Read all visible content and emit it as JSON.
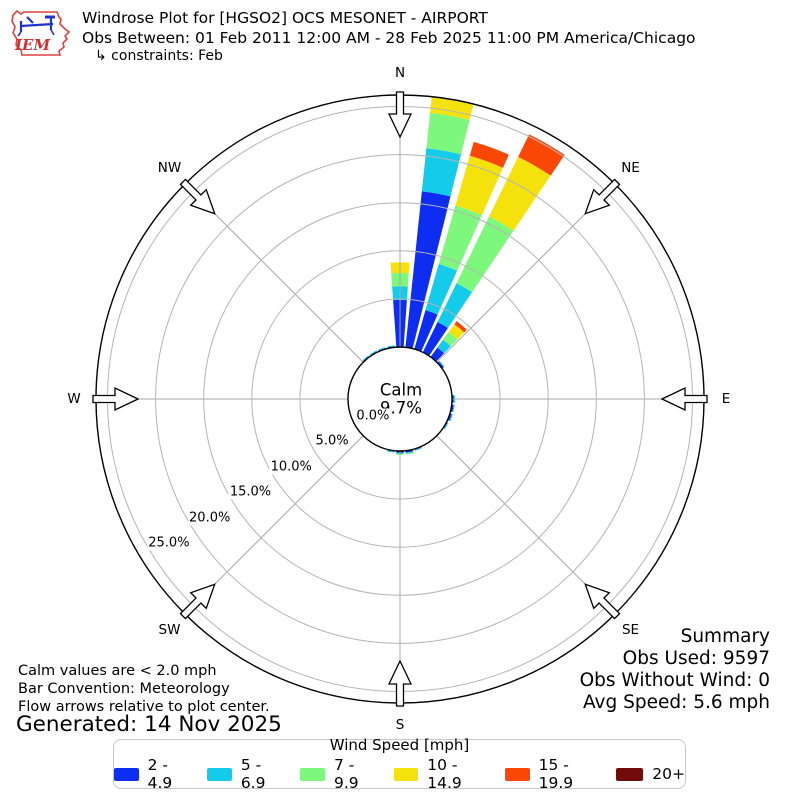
{
  "header": {
    "title": "Windrose Plot for [HGSO2] OCS MESONET - AIRPORT",
    "subtitle": "Obs Between: 01 Feb 2011 12:00 AM - 28 Feb 2025 11:00 PM America/Chicago",
    "constraints": "↳ constraints: Feb",
    "logo_text": "IEM"
  },
  "chart_data": {
    "type": "windrose",
    "units": "mph",
    "bar_convention": "Meteorology",
    "compass_labels": [
      "N",
      "NE",
      "E",
      "SE",
      "S",
      "SW",
      "W",
      "NW"
    ],
    "ring_labels": [
      "0.0%",
      "5.0%",
      "10.0%",
      "15.0%",
      "20.0%",
      "25.0%"
    ],
    "ring_values_pct": [
      0,
      5,
      10,
      15,
      20,
      25
    ],
    "r_axis_max_pct": 26.2,
    "calm": {
      "label": "Calm",
      "value": "9.7%"
    },
    "speed_bins": [
      {
        "label": "2 - 4.9",
        "color": "#0d2ef0"
      },
      {
        "label": "5 - 6.9",
        "color": "#15cbea"
      },
      {
        "label": "7 - 9.9",
        "color": "#7ef77d"
      },
      {
        "label": "10 - 14.9",
        "color": "#f5e20c"
      },
      {
        "label": "15 - 19.9",
        "color": "#fb4706"
      },
      {
        "label": "20+",
        "color": "#720b0b"
      }
    ],
    "sector_width_deg": 8,
    "directions": [
      {
        "azimuth_deg": 0,
        "pct": [
          4.9,
          1.4,
          1.4,
          1.1,
          0,
          0
        ]
      },
      {
        "azimuth_deg": 10,
        "pct": [
          16.3,
          4.5,
          3.7,
          1.7,
          0,
          0
        ]
      },
      {
        "azimuth_deg": 20,
        "pct": [
          4.2,
          5.0,
          6.3,
          5.4,
          1.5,
          0
        ]
      },
      {
        "azimuth_deg": 30,
        "pct": [
          3.5,
          4.5,
          7.7,
          6.9,
          2.6,
          0
        ]
      },
      {
        "azimuth_deg": 40,
        "pct": [
          1.2,
          1.0,
          1.0,
          1.0,
          0.4,
          0
        ]
      },
      {
        "azimuth_deg": 50,
        "pct": [
          0.2,
          0.1,
          0,
          0,
          0,
          0
        ]
      },
      {
        "azimuth_deg": 90,
        "pct": [
          0.2,
          0.1,
          0,
          0,
          0,
          0
        ]
      },
      {
        "azimuth_deg": 100,
        "pct": [
          0.2,
          0.1,
          0,
          0,
          0,
          0
        ]
      },
      {
        "azimuth_deg": 110,
        "pct": [
          0.2,
          0.1,
          0,
          0,
          0,
          0
        ]
      },
      {
        "azimuth_deg": 120,
        "pct": [
          0.1,
          0.1,
          0,
          0,
          0,
          0
        ]
      },
      {
        "azimuth_deg": 160,
        "pct": [
          0.1,
          0.1,
          0,
          0,
          0,
          0
        ]
      },
      {
        "azimuth_deg": 170,
        "pct": [
          0.2,
          0.1,
          0.1,
          0,
          0,
          0
        ]
      },
      {
        "azimuth_deg": 180,
        "pct": [
          0.2,
          0.1,
          0.1,
          0,
          0,
          0
        ]
      },
      {
        "azimuth_deg": 190,
        "pct": [
          0.1,
          0.1,
          0,
          0,
          0,
          0
        ]
      },
      {
        "azimuth_deg": 320,
        "pct": [
          0.1,
          0.1,
          0,
          0,
          0,
          0
        ]
      },
      {
        "azimuth_deg": 330,
        "pct": [
          0.1,
          0.1,
          0,
          0,
          0,
          0
        ]
      },
      {
        "azimuth_deg": 340,
        "pct": [
          0.1,
          0.1,
          0,
          0,
          0,
          0
        ]
      },
      {
        "azimuth_deg": 350,
        "pct": [
          0.1,
          0.1,
          0,
          0,
          0,
          0
        ]
      }
    ]
  },
  "summary": {
    "title": "Summary",
    "lines": [
      "Obs Used: 9597",
      "Obs Without Wind: 0",
      "Avg Speed: 5.6 mph"
    ]
  },
  "footnotes": [
    "Calm values are < 2.0 mph",
    "Bar Convention: Meteorology",
    "Flow arrows relative to plot center."
  ],
  "generated": "Generated: 14 Nov 2025",
  "legend": {
    "title": "Wind Speed [mph]"
  }
}
